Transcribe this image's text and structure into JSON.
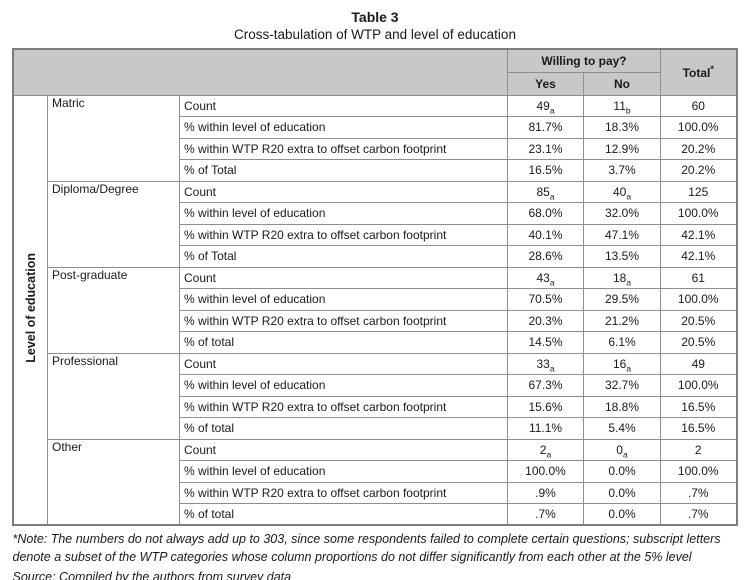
{
  "page": {
    "title": "Table 3",
    "subtitle": "Cross-tabulation of WTP and level of education"
  },
  "table": {
    "row_axis_label": "Level of education",
    "col_group_label": "Willing to pay?",
    "col_headers": [
      "Yes",
      "No"
    ],
    "total_label": "Total",
    "total_sup": "*",
    "groups": [
      {
        "category": "Matric",
        "rows": [
          {
            "label": "Count",
            "yes": "49",
            "yes_sub": "a",
            "no": "11",
            "no_sub": "b",
            "total": "60"
          },
          {
            "label": "% within level of education",
            "yes": "81.7%",
            "no": "18.3%",
            "total": "100.0%"
          },
          {
            "label": "% within WTP R20 extra to offset carbon footprint",
            "yes": "23.1%",
            "no": "12.9%",
            "total": "20.2%"
          },
          {
            "label": "% of Total",
            "yes": "16.5%",
            "no": "3.7%",
            "total": "20.2%"
          }
        ]
      },
      {
        "category": "Diploma/Degree",
        "rows": [
          {
            "label": "Count",
            "yes": "85",
            "yes_sub": "a",
            "no": "40",
            "no_sub": "a",
            "total": "125"
          },
          {
            "label": "% within level of education",
            "yes": "68.0%",
            "no": "32.0%",
            "total": "100.0%"
          },
          {
            "label": "% within WTP R20 extra to offset carbon footprint",
            "yes": "40.1%",
            "no": "47.1%",
            "total": "42.1%"
          },
          {
            "label": "% of Total",
            "yes": "28.6%",
            "no": "13.5%",
            "total": "42.1%"
          }
        ]
      },
      {
        "category": "Post-graduate",
        "rows": [
          {
            "label": "Count",
            "yes": "43",
            "yes_sub": "a",
            "no": "18",
            "no_sub": "a",
            "total": "61"
          },
          {
            "label": "% within level of education",
            "yes": "70.5%",
            "no": "29.5%",
            "total": "100.0%"
          },
          {
            "label": "% within WTP R20 extra to offset carbon footprint",
            "yes": "20.3%",
            "no": "21.2%",
            "total": "20.5%"
          },
          {
            "label": "% of total",
            "yes": "14.5%",
            "no": "6.1%",
            "total": "20.5%"
          }
        ]
      },
      {
        "category": "Professional",
        "rows": [
          {
            "label": "Count",
            "yes": "33",
            "yes_sub": "a",
            "no": "16",
            "no_sub": "a",
            "total": "49"
          },
          {
            "label": "% within level of education",
            "yes": "67.3%",
            "no": "32.7%",
            "total": "100.0%"
          },
          {
            "label": "% within WTP R20 extra to offset carbon footprint",
            "yes": "15.6%",
            "no": "18.8%",
            "total": "16.5%"
          },
          {
            "label": "% of total",
            "yes": "11.1%",
            "no": "5.4%",
            "total": "16.5%"
          }
        ]
      },
      {
        "category": "Other",
        "rows": [
          {
            "label": "Count",
            "yes": "2",
            "yes_sub": "a",
            "no": "0",
            "no_sub": "a",
            "total": "2"
          },
          {
            "label": "% within level of education",
            "yes": "100.0%",
            "no": "0.0%",
            "total": "100.0%"
          },
          {
            "label": "% within WTP R20 extra to offset carbon footprint",
            "yes": ".9%",
            "no": "0.0%",
            "total": ".7%"
          },
          {
            "label": "% of total",
            "yes": ".7%",
            "no": "0.0%",
            "total": ".7%"
          }
        ]
      }
    ]
  },
  "footnotes": {
    "note": "*Note: The numbers do not always add up to 303, since some respondents failed to complete certain questions; subscript letters denote a subset of the WTP categories whose column proportions do not differ significantly from each other at the 5% level",
    "source": "Source: Compiled by the authors from survey data"
  },
  "colors": {
    "header_bg": "#c8c8c8",
    "grid_border": "#8f8f8f",
    "outer_border": "#7d7d7d",
    "text": "#1a1a1a"
  }
}
